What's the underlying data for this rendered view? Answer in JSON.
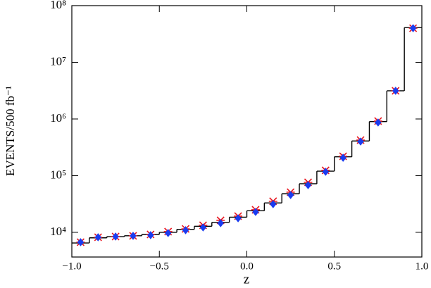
{
  "chart_data": {
    "type": "histogram",
    "x_label": "z",
    "y_label": "EVENTS/500 fb⁻¹",
    "bins": [
      -1.0,
      -0.9,
      -0.8,
      -0.7,
      -0.6,
      -0.5,
      -0.4,
      -0.3,
      -0.2,
      -0.1,
      0.0,
      0.1,
      0.2,
      0.3,
      0.4,
      0.5,
      0.6,
      0.7,
      0.8,
      0.9,
      1.0
    ],
    "series": [
      {
        "style": "step",
        "color": "#000000",
        "values": [
          6500,
          8000,
          8400,
          8700,
          9200,
          10000,
          11300,
          12800,
          15000,
          18500,
          24000,
          33000,
          48000,
          72000,
          120000,
          215000,
          410000,
          900000,
          3140000,
          41000000
        ]
      },
      {
        "style": "star",
        "color": "#e8141e",
        "values": [
          6700,
          8180,
          8420,
          8670,
          9180,
          10300,
          11500,
          13300,
          16300,
          19300,
          25000,
          35300,
          51100,
          76300,
          124000,
          220000,
          424000,
          918000,
          3140000,
          40000000
        ]
      },
      {
        "style": "diamond",
        "color": "#1a3cf0",
        "values": [
          6700,
          8180,
          8420,
          8670,
          8920,
          9720,
          10900,
          12200,
          14500,
          17700,
          22900,
          31400,
          45500,
          68000,
          117000,
          207000,
          400000,
          867000,
          3140000,
          40000000
        ]
      }
    ],
    "xlim": [
      -1.0,
      1.0
    ],
    "xticks": [
      {
        "value": -1.0,
        "label": "−1.0"
      },
      {
        "value": -0.5,
        "label": "−0.5"
      },
      {
        "value": 0.0,
        "label": "0.0"
      },
      {
        "value": 0.5,
        "label": "0.5"
      },
      {
        "value": 1.0,
        "label": "1.0"
      }
    ],
    "ylim": [
      3670,
      100000000
    ],
    "yticks": [
      {
        "value": 10000,
        "label": "10⁴"
      },
      {
        "value": 100000,
        "label": "10⁵"
      },
      {
        "value": 1000000,
        "label": "10⁶"
      },
      {
        "value": 10000000,
        "label": "10⁷"
      },
      {
        "value": 100000000,
        "label": "10⁸"
      }
    ],
    "y_scale": "log"
  }
}
